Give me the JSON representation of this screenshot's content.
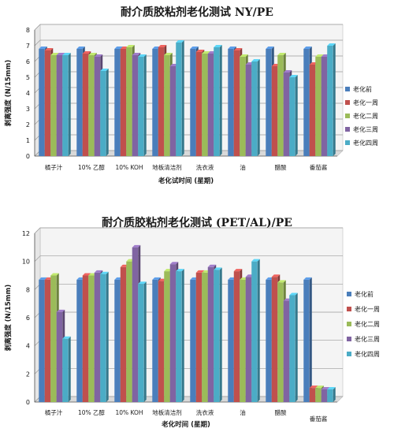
{
  "colors": {
    "series": [
      "#4a7ebb",
      "#c0504d",
      "#9bbb59",
      "#8064a2",
      "#4bacc6"
    ],
    "gridline": "#9a9a9a",
    "plot_wall": "#f4f4f4"
  },
  "chart_data": [
    {
      "type": "bar",
      "title": "耐介质胶粘剂老化测试 NY/PE",
      "xlabel": "老化试时间 (星期)",
      "ylabel": "剥离强度 (N/15mm)",
      "ylim": [
        0,
        8
      ],
      "yticks": [
        0,
        1,
        2,
        3,
        4,
        5,
        6,
        7,
        8
      ],
      "grid": true,
      "legend_position": "right",
      "categories": [
        "橘子汁",
        "10% 乙醇",
        "10% KOH",
        "地板清洁剂",
        "洗衣液",
        "油",
        "醋酸",
        "番茄酱"
      ],
      "series": [
        {
          "name": "老化前",
          "values": [
            6.8,
            6.8,
            6.8,
            6.8,
            6.8,
            6.8,
            6.8,
            6.8
          ]
        },
        {
          "name": "老化一周",
          "values": [
            6.7,
            6.5,
            6.8,
            6.9,
            6.6,
            6.7,
            5.7,
            5.8
          ]
        },
        {
          "name": "老化二周",
          "values": [
            6.4,
            6.4,
            6.9,
            6.4,
            6.5,
            6.3,
            6.4,
            6.3
          ]
        },
        {
          "name": "老化三周",
          "values": [
            6.4,
            6.3,
            6.4,
            5.7,
            6.5,
            5.8,
            5.3,
            6.3
          ]
        },
        {
          "name": "老化四周",
          "values": [
            6.4,
            5.4,
            6.3,
            7.2,
            6.9,
            6.0,
            5.0,
            7.0
          ]
        }
      ]
    },
    {
      "type": "bar",
      "title": "耐介质胶粘剂老化测试 (PET/AL)/PE",
      "xlabel": "老化时间 (星期)",
      "ylabel": "剥离强度 (N/15mm)",
      "ylim": [
        0,
        12
      ],
      "yticks": [
        0,
        2,
        4,
        6,
        8,
        10,
        12
      ],
      "grid": true,
      "legend_position": "right",
      "categories": [
        "橘子汁",
        "10% 乙醇",
        "10% KOH",
        "地板清洁剂",
        "洗衣液",
        "油",
        "醋酸",
        "番茄酱"
      ],
      "series": [
        {
          "name": "老化前",
          "values": [
            8.7,
            8.7,
            8.7,
            8.7,
            8.7,
            8.7,
            8.7,
            8.7
          ]
        },
        {
          "name": "老化一周",
          "values": [
            8.7,
            9.0,
            9.6,
            8.6,
            9.2,
            9.3,
            8.9,
            1.0
          ]
        },
        {
          "name": "老化二周",
          "values": [
            9.0,
            9.0,
            10.0,
            9.3,
            9.2,
            8.7,
            8.5,
            1.0
          ]
        },
        {
          "name": "老化三周",
          "values": [
            6.4,
            9.2,
            11.0,
            9.8,
            9.6,
            8.9,
            7.2,
            0.9
          ]
        },
        {
          "name": "老化四周",
          "values": [
            4.5,
            9.1,
            8.4,
            9.3,
            9.4,
            10.0,
            7.6,
            0.9
          ]
        }
      ]
    }
  ]
}
